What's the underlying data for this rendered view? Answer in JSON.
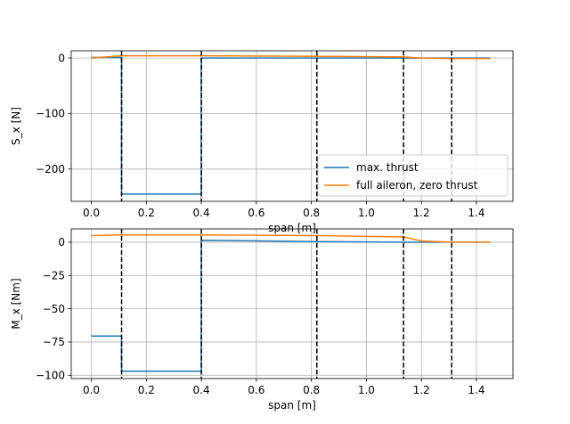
{
  "chart_data": [
    {
      "type": "line",
      "title": "",
      "xlabel": "span [m]",
      "ylabel": "S_x [N]",
      "xlim": [
        -0.073,
        1.533
      ],
      "ylim": [
        -258,
        13
      ],
      "xticks": [
        0.0,
        0.2,
        0.4,
        0.6,
        0.8,
        1.0,
        1.2,
        1.4
      ],
      "xtick_labels": [
        "0.0",
        "0.2",
        "0.4",
        "0.6",
        "0.8",
        "1.0",
        "1.2",
        "1.4"
      ],
      "yticks": [
        0,
        -100,
        -200
      ],
      "ytick_labels": [
        "0",
        "−100",
        "−200"
      ],
      "grid": true,
      "legend": "lower-right",
      "vlines": [
        0.11,
        0.4,
        0.82,
        1.135,
        1.31
      ],
      "series": [
        {
          "name": "max. thrust",
          "color": "#1f77b4",
          "x": [
            0.0,
            0.11,
            0.11,
            0.4,
            0.4,
            0.82,
            1.135,
            1.31,
            1.45
          ],
          "y": [
            1,
            1,
            -245,
            -245,
            0,
            0,
            0,
            0,
            0
          ]
        },
        {
          "name": "full aileron, zero thrust",
          "color": "#ff7f0e",
          "x": [
            0.0,
            0.11,
            0.4,
            0.82,
            1.135,
            1.2,
            1.31,
            1.45
          ],
          "y": [
            0,
            4,
            4,
            3,
            2,
            0,
            -1,
            -1
          ]
        }
      ]
    },
    {
      "type": "line",
      "title": "",
      "xlabel": "span [m]",
      "ylabel": "M_x [Nm]",
      "xlim": [
        -0.073,
        1.533
      ],
      "ylim": [
        -102.5,
        10
      ],
      "xticks": [
        0.0,
        0.2,
        0.4,
        0.6,
        0.8,
        1.0,
        1.2,
        1.4
      ],
      "xtick_labels": [
        "0.0",
        "0.2",
        "0.4",
        "0.6",
        "0.8",
        "1.0",
        "1.2",
        "1.4"
      ],
      "yticks": [
        0,
        -25,
        -50,
        -75,
        -100
      ],
      "ytick_labels": [
        "0",
        "−25",
        "−50",
        "−75",
        "−100"
      ],
      "grid": true,
      "legend": "none",
      "vlines": [
        0.11,
        0.4,
        0.82,
        1.135,
        1.31
      ],
      "series": [
        {
          "name": "max. thrust",
          "color": "#1f77b4",
          "x": [
            0.0,
            0.11,
            0.11,
            0.4,
            0.4,
            0.82,
            1.135,
            1.31,
            1.45
          ],
          "y": [
            -70.5,
            -70.5,
            -97,
            -97,
            1.5,
            0.5,
            0,
            0,
            0
          ]
        },
        {
          "name": "full aileron, zero thrust",
          "color": "#ff7f0e",
          "x": [
            0.0,
            0.11,
            0.4,
            0.82,
            1.135,
            1.2,
            1.31,
            1.45
          ],
          "y": [
            5,
            5.5,
            5.5,
            5,
            4,
            1,
            0,
            0
          ]
        }
      ]
    }
  ]
}
